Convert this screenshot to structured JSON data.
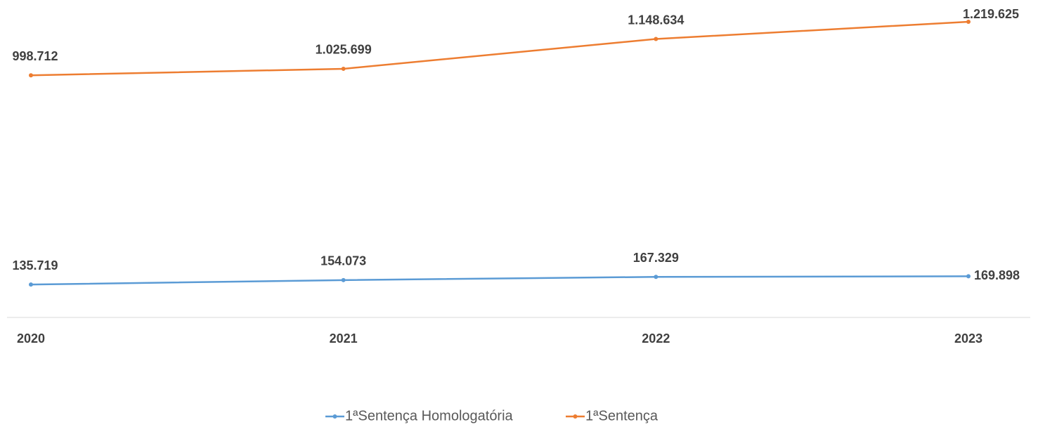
{
  "chart_data": {
    "type": "line",
    "categories": [
      "2020",
      "2021",
      "2022",
      "2023"
    ],
    "series": [
      {
        "name": "1ªSentença Homologatória",
        "color": "#5b9bd5",
        "values": [
          135719,
          154073,
          167329,
          169898
        ],
        "value_labels": [
          "135.719",
          "154.073",
          "167.329",
          "169.898"
        ]
      },
      {
        "name": "1ªSentença",
        "color": "#ed7d31",
        "values": [
          998712,
          1025699,
          1148634,
          1219625
        ],
        "value_labels": [
          "998.712",
          "1.025.699",
          "1.148.634",
          "1.219.625"
        ]
      }
    ],
    "ylim": [
      0,
      1300000
    ]
  }
}
